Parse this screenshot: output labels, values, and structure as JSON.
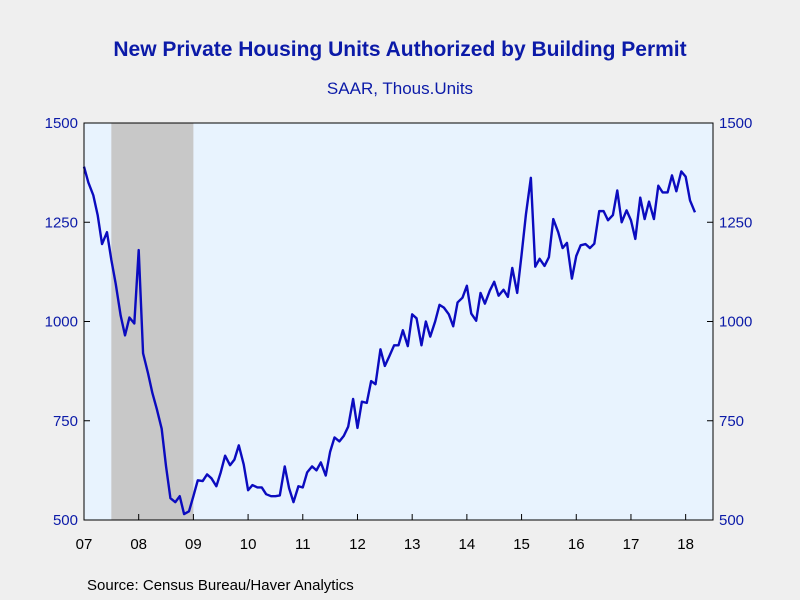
{
  "chart_data": {
    "type": "line",
    "title": "New Private Housing Units Authorized by Building Permit",
    "subtitle": "SAAR, Thous.Units",
    "source": "Source:  Census Bureau/Haver Analytics",
    "xlabel": "",
    "ylabel": "",
    "x_start": 2007.0,
    "x_end": 2018.5,
    "xlim": [
      2007.0,
      2018.5
    ],
    "ylim": [
      500,
      1500
    ],
    "y_ticks": [
      500,
      750,
      1000,
      1250,
      1500
    ],
    "y_tick_labels": [
      "500",
      "750",
      "1000",
      "1250",
      "1500"
    ],
    "x_ticks": [
      {
        "x": 2007.0,
        "label": "07"
      },
      {
        "x": 2008.0,
        "label": "08"
      },
      {
        "x": 2009.0,
        "label": "09"
      },
      {
        "x": 2010.0,
        "label": "10"
      },
      {
        "x": 2011.0,
        "label": "11"
      },
      {
        "x": 2012.0,
        "label": "12"
      },
      {
        "x": 2013.0,
        "label": "13"
      },
      {
        "x": 2014.0,
        "label": "14"
      },
      {
        "x": 2015.0,
        "label": "15"
      },
      {
        "x": 2016.0,
        "label": "16"
      },
      {
        "x": 2017.0,
        "label": "17"
      },
      {
        "x": 2018.0,
        "label": "18"
      }
    ],
    "recession": {
      "start": 2007.5,
      "end": 2009.0
    },
    "grid": false,
    "colors": {
      "line": "#0b0bbf",
      "plot_background": "#e8f3fe",
      "recession_shade": "#c8c8c8",
      "text": "#0b1aa8"
    },
    "series": [
      {
        "name": "",
        "values": [
          [
            2007.0,
            1390
          ],
          [
            2007.08,
            1350
          ],
          [
            2007.17,
            1318
          ],
          [
            2007.25,
            1268
          ],
          [
            2007.33,
            1195
          ],
          [
            2007.42,
            1225
          ],
          [
            2007.5,
            1155
          ],
          [
            2007.58,
            1095
          ],
          [
            2007.67,
            1015
          ],
          [
            2007.75,
            965
          ],
          [
            2007.83,
            1010
          ],
          [
            2007.92,
            995
          ],
          [
            2008.0,
            1180
          ],
          [
            2008.08,
            920
          ],
          [
            2008.17,
            870
          ],
          [
            2008.25,
            820
          ],
          [
            2008.33,
            780
          ],
          [
            2008.42,
            730
          ],
          [
            2008.5,
            635
          ],
          [
            2008.58,
            555
          ],
          [
            2008.67,
            545
          ],
          [
            2008.75,
            560
          ],
          [
            2008.83,
            515
          ],
          [
            2008.92,
            522
          ],
          [
            2009.0,
            560
          ],
          [
            2009.08,
            600
          ],
          [
            2009.17,
            598
          ],
          [
            2009.25,
            615
          ],
          [
            2009.33,
            605
          ],
          [
            2009.42,
            585
          ],
          [
            2009.5,
            620
          ],
          [
            2009.58,
            662
          ],
          [
            2009.67,
            638
          ],
          [
            2009.75,
            652
          ],
          [
            2009.83,
            688
          ],
          [
            2009.92,
            640
          ],
          [
            2010.0,
            575
          ],
          [
            2010.08,
            588
          ],
          [
            2010.17,
            582
          ],
          [
            2010.25,
            582
          ],
          [
            2010.33,
            565
          ],
          [
            2010.42,
            560
          ],
          [
            2010.5,
            560
          ],
          [
            2010.58,
            562
          ],
          [
            2010.67,
            635
          ],
          [
            2010.75,
            580
          ],
          [
            2010.83,
            545
          ],
          [
            2010.92,
            585
          ],
          [
            2011.0,
            582
          ],
          [
            2011.08,
            620
          ],
          [
            2011.17,
            635
          ],
          [
            2011.25,
            625
          ],
          [
            2011.33,
            645
          ],
          [
            2011.42,
            612
          ],
          [
            2011.5,
            672
          ],
          [
            2011.58,
            708
          ],
          [
            2011.67,
            698
          ],
          [
            2011.75,
            712
          ],
          [
            2011.83,
            735
          ],
          [
            2011.92,
            805
          ],
          [
            2012.0,
            732
          ],
          [
            2012.08,
            798
          ],
          [
            2012.17,
            795
          ],
          [
            2012.25,
            850
          ],
          [
            2012.33,
            842
          ],
          [
            2012.42,
            930
          ],
          [
            2012.5,
            888
          ],
          [
            2012.58,
            912
          ],
          [
            2012.67,
            940
          ],
          [
            2012.75,
            940
          ],
          [
            2012.83,
            978
          ],
          [
            2012.92,
            938
          ],
          [
            2013.0,
            1018
          ],
          [
            2013.08,
            1008
          ],
          [
            2013.17,
            940
          ],
          [
            2013.25,
            1000
          ],
          [
            2013.33,
            962
          ],
          [
            2013.42,
            1000
          ],
          [
            2013.5,
            1042
          ],
          [
            2013.58,
            1035
          ],
          [
            2013.67,
            1018
          ],
          [
            2013.75,
            988
          ],
          [
            2013.83,
            1048
          ],
          [
            2013.92,
            1060
          ],
          [
            2014.0,
            1090
          ],
          [
            2014.08,
            1020
          ],
          [
            2014.17,
            1002
          ],
          [
            2014.25,
            1072
          ],
          [
            2014.33,
            1045
          ],
          [
            2014.42,
            1078
          ],
          [
            2014.5,
            1100
          ],
          [
            2014.58,
            1065
          ],
          [
            2014.67,
            1080
          ],
          [
            2014.75,
            1062
          ],
          [
            2014.83,
            1135
          ],
          [
            2014.92,
            1072
          ],
          [
            2015.0,
            1168
          ],
          [
            2015.08,
            1270
          ],
          [
            2015.17,
            1362
          ],
          [
            2015.25,
            1138
          ],
          [
            2015.33,
            1158
          ],
          [
            2015.42,
            1140
          ],
          [
            2015.5,
            1162
          ],
          [
            2015.58,
            1258
          ],
          [
            2015.67,
            1225
          ],
          [
            2015.75,
            1185
          ],
          [
            2015.83,
            1198
          ],
          [
            2015.92,
            1108
          ],
          [
            2016.0,
            1165
          ],
          [
            2016.08,
            1192
          ],
          [
            2016.17,
            1195
          ],
          [
            2016.25,
            1185
          ],
          [
            2016.33,
            1196
          ],
          [
            2016.42,
            1278
          ],
          [
            2016.5,
            1278
          ],
          [
            2016.58,
            1255
          ],
          [
            2016.67,
            1268
          ],
          [
            2016.75,
            1330
          ],
          [
            2016.83,
            1250
          ],
          [
            2016.92,
            1280
          ],
          [
            2017.0,
            1255
          ],
          [
            2017.08,
            1208
          ],
          [
            2017.17,
            1312
          ],
          [
            2017.25,
            1258
          ],
          [
            2017.33,
            1302
          ],
          [
            2017.42,
            1258
          ],
          [
            2017.5,
            1342
          ],
          [
            2017.58,
            1325
          ],
          [
            2017.67,
            1325
          ],
          [
            2017.75,
            1368
          ],
          [
            2017.83,
            1328
          ],
          [
            2017.92,
            1378
          ],
          [
            2018.0,
            1365
          ],
          [
            2018.08,
            1305
          ],
          [
            2018.17,
            1275
          ]
        ]
      }
    ]
  }
}
